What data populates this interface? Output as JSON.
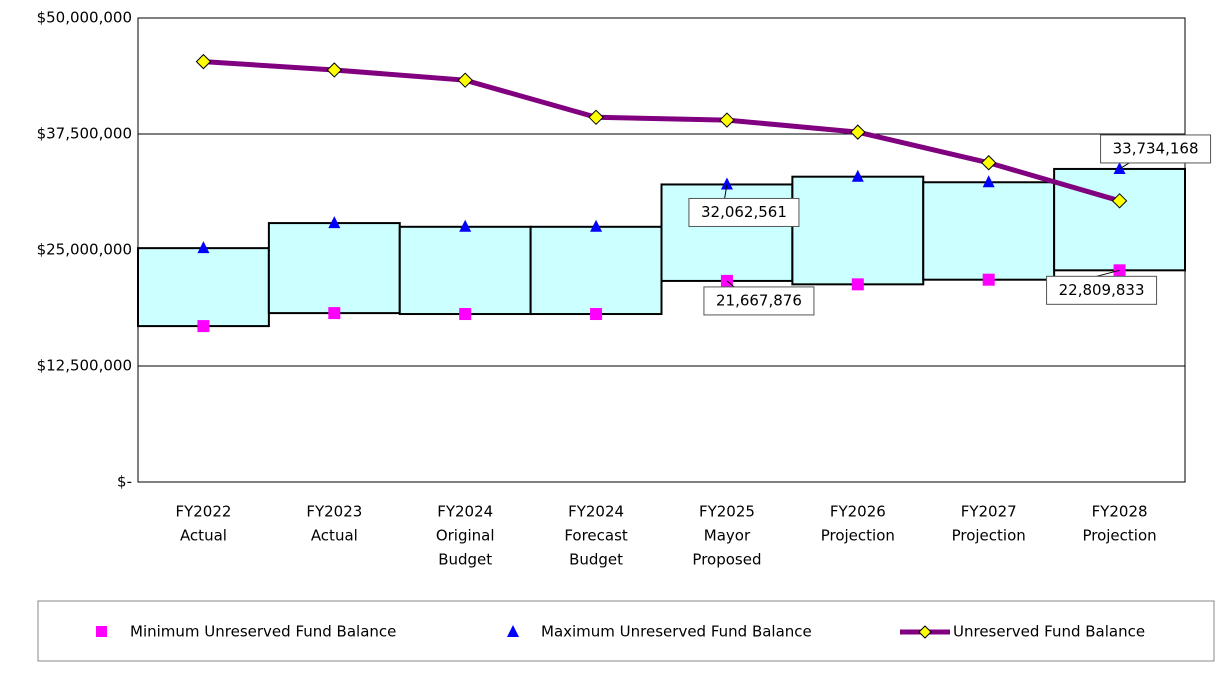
{
  "chart_data": {
    "type": "range-line",
    "categories": [
      [
        "FY2022",
        "Actual"
      ],
      [
        "FY2023",
        "Actual"
      ],
      [
        "FY2024",
        "Original",
        "Budget"
      ],
      [
        "FY2024",
        "Forecast",
        "Budget"
      ],
      [
        "FY2025",
        "Mayor",
        "Proposed"
      ],
      [
        "FY2026",
        "Projection"
      ],
      [
        "FY2027",
        "Projection"
      ],
      [
        "FY2028",
        "Projection"
      ]
    ],
    "series": [
      {
        "name": "Minimum Unreserved Fund Balance",
        "color": "#ff00ff",
        "marker": "square",
        "values": [
          16800000,
          18200000,
          18100000,
          18100000,
          21667876,
          21300000,
          21800000,
          22809833
        ],
        "value_labels": [
          null,
          null,
          null,
          null,
          "21,667,876",
          null,
          null,
          "22,809,833"
        ]
      },
      {
        "name": "Maximum Unreserved Fund Balance",
        "color": "#0000ff",
        "marker": "triangle",
        "values": [
          25200000,
          27900000,
          27500000,
          27500000,
          32062561,
          32900000,
          32300000,
          33734168
        ],
        "value_labels": [
          null,
          null,
          null,
          null,
          "32,062,561",
          null,
          null,
          "33,734,168"
        ]
      },
      {
        "name": "Unreserved Fund Balance",
        "color": "#800080",
        "marker": "diamond",
        "marker_color": "#ffff00",
        "values": [
          45300000,
          44400000,
          43300000,
          39300000,
          39000000,
          37700000,
          34400000,
          30300000
        ]
      }
    ],
    "range_color": "#ccffff",
    "ylim": [
      0,
      50000000
    ],
    "yticks": [
      {
        "value": 0,
        "label": "$-"
      },
      {
        "value": 12500000,
        "label": "$12,500,000"
      },
      {
        "value": 25000000,
        "label": "$25,000,000"
      },
      {
        "value": 37500000,
        "label": "$37,500,000"
      },
      {
        "value": 50000000,
        "label": "$50,000,000"
      }
    ],
    "grid": true,
    "legend": "bottom"
  }
}
